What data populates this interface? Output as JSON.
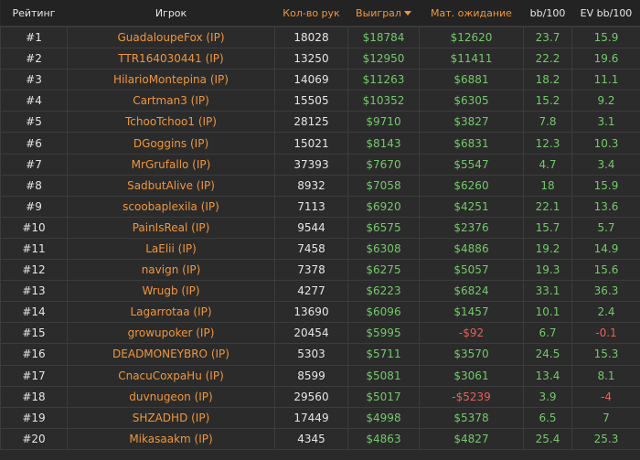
{
  "headers": [
    "Рейтинг",
    "Игрок",
    "Кол-во рук",
    "Выиграл",
    "Мат. ожидание",
    "bb/100",
    "EV bb/100"
  ],
  "sorted_column": "Выиграл",
  "colors": {
    "orange": "#f0963c",
    "green": "#74c96a",
    "red": "#e8605a"
  },
  "rows": [
    [
      "#1",
      "GuadaloupeFox (IP)",
      "18028",
      "$18784",
      "$12620",
      "23.7",
      "15.9"
    ],
    [
      "#2",
      "TTR164030441 (IP)",
      "13250",
      "$12950",
      "$11411",
      "22.2",
      "19.6"
    ],
    [
      "#3",
      "HilarioMontepina (IP)",
      "14069",
      "$11263",
      "$6881",
      "18.2",
      "11.1"
    ],
    [
      "#4",
      "Cartman3 (IP)",
      "15505",
      "$10352",
      "$6305",
      "15.2",
      "9.2"
    ],
    [
      "#5",
      "TchooTchoo1 (IP)",
      "28125",
      "$9710",
      "$3827",
      "7.8",
      "3.1"
    ],
    [
      "#6",
      "DGoggins (IP)",
      "15021",
      "$8143",
      "$6831",
      "12.3",
      "10.3"
    ],
    [
      "#7",
      "MrGrufallo (IP)",
      "37393",
      "$7670",
      "$5547",
      "4.7",
      "3.4"
    ],
    [
      "#8",
      "SadbutAlive (IP)",
      "8932",
      "$7058",
      "$6260",
      "18",
      "15.9"
    ],
    [
      "#9",
      "scoobaplexila (IP)",
      "7113",
      "$6920",
      "$4251",
      "22.1",
      "13.6"
    ],
    [
      "#10",
      "PainIsReal (IP)",
      "9544",
      "$6575",
      "$2376",
      "15.7",
      "5.7"
    ],
    [
      "#11",
      "LaElii (IP)",
      "7458",
      "$6308",
      "$4886",
      "19.2",
      "14.9"
    ],
    [
      "#12",
      "navign (IP)",
      "7378",
      "$6275",
      "$5057",
      "19.3",
      "15.6"
    ],
    [
      "#13",
      "Wrugb (IP)",
      "4277",
      "$6223",
      "$6824",
      "33.1",
      "36.3"
    ],
    [
      "#14",
      "Lagarrotaa (IP)",
      "13690",
      "$6096",
      "$1457",
      "10.1",
      "2.4"
    ],
    [
      "#15",
      "growupoker (IP)",
      "20454",
      "$5995",
      "-$92",
      "6.7",
      "-0.1"
    ],
    [
      "#16",
      "DEADMONEYBRO (IP)",
      "5303",
      "$5711",
      "$3570",
      "24.5",
      "15.3"
    ],
    [
      "#17",
      "CnacuCoxpaHu (IP)",
      "8599",
      "$5081",
      "$3061",
      "13.4",
      "8.1"
    ],
    [
      "#18",
      "duvnugeon (IP)",
      "29560",
      "$5017",
      "-$5239",
      "3.9",
      "-4"
    ],
    [
      "#19",
      "SHZADHD (IP)",
      "17449",
      "$4998",
      "$5378",
      "6.5",
      "7"
    ],
    [
      "#20",
      "Mikasaakm (IP)",
      "4345",
      "$4863",
      "$4827",
      "25.4",
      "25.3"
    ]
  ]
}
